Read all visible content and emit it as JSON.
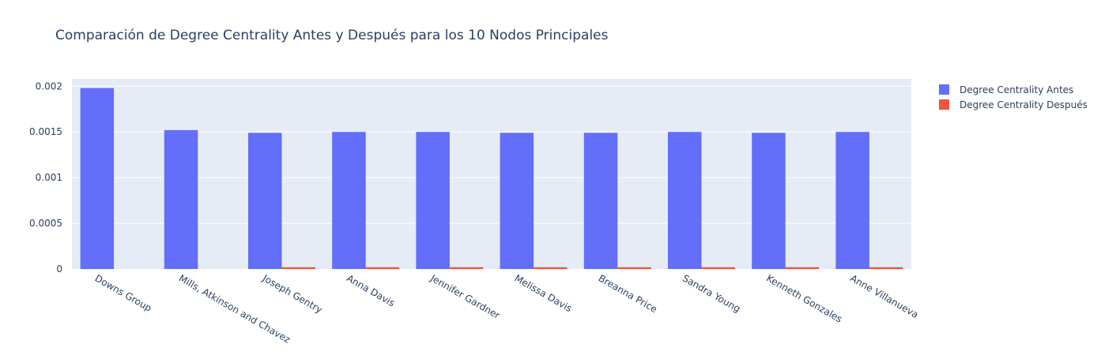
{
  "chart_data": {
    "type": "bar",
    "title": "Comparación de Degree Centrality Antes y Después para los 10 Nodos Principales",
    "xlabel": "",
    "ylabel": "",
    "categories": [
      "Downs Group",
      "Mills, Atkinson and Chavez",
      "Joseph Gentry",
      "Anna Davis",
      "Jennifer Gardner",
      "Melissa Davis",
      "Breanna Price",
      "Sandra Young",
      "Kenneth Gonzales",
      "Anne Villanueva"
    ],
    "series": [
      {
        "name": "Degree Centrality Antes",
        "color": "#636efa",
        "values": [
          0.00198,
          0.00152,
          0.00149,
          0.0015,
          0.0015,
          0.00149,
          0.00149,
          0.0015,
          0.00149,
          0.0015
        ]
      },
      {
        "name": "Degree Centrality Después",
        "color": "#ef553b",
        "values": [
          0.0,
          0.0,
          2e-05,
          2e-05,
          2e-05,
          2e-05,
          2e-05,
          2e-05,
          2e-05,
          2e-05
        ]
      }
    ],
    "ylim": [
      0,
      0.00208
    ],
    "yticks": [
      0,
      0.0005,
      0.001,
      0.0015,
      0.002
    ],
    "ytick_labels": [
      "0",
      "0.0005",
      "0.001",
      "0.0015",
      "0.002"
    ],
    "grid": true,
    "legend": "top-right"
  },
  "colors": {
    "plot_bg": "#e5ecf6",
    "grid": "#ffffff",
    "text": "#2a3f5f"
  }
}
